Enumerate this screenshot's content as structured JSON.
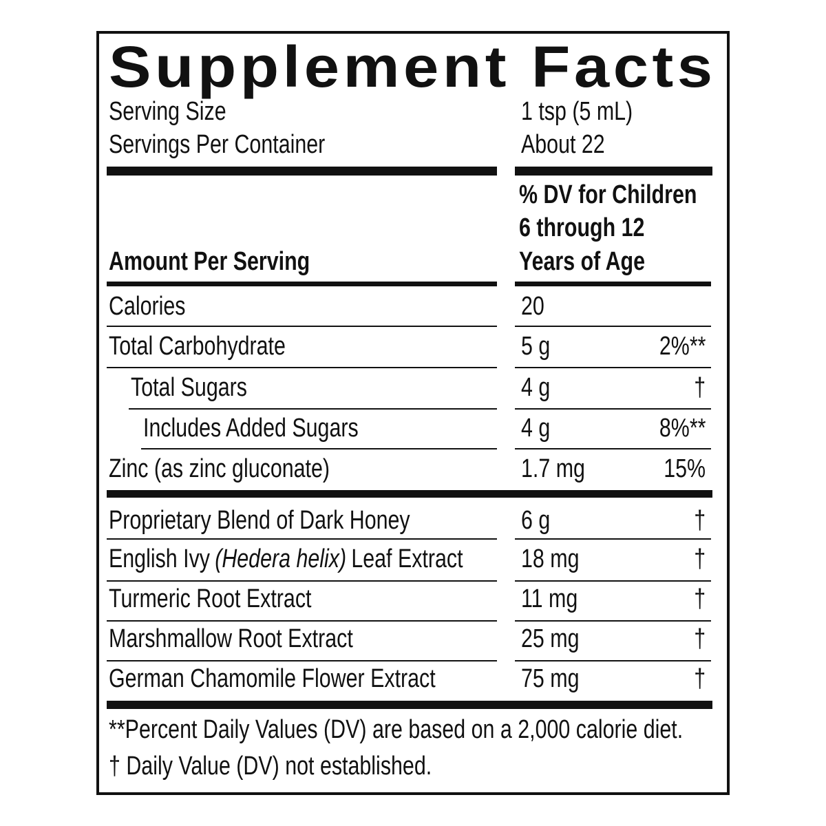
{
  "title": "Supplement Facts",
  "serving": [
    {
      "label": "Serving Size",
      "value": "1 tsp (5 mL)"
    },
    {
      "label": "Servings Per Container",
      "value": "About 22"
    }
  ],
  "column_headers": {
    "amount": "Amount Per Serving",
    "dv": [
      "% DV for Children",
      "6 through 12",
      "Years of Age"
    ]
  },
  "rows": [
    {
      "name": "Calories",
      "amount": "20"
    },
    {
      "name": "Total Carbohydrate",
      "amount": "5 g",
      "dv": "2%**"
    },
    {
      "name": "Total Sugars",
      "amount": "4 g",
      "dv": "†"
    },
    {
      "name": "Includes Added Sugars",
      "amount": "4 g",
      "dv": "8%**"
    },
    {
      "name": "Zinc (as zinc gluconate)",
      "amount": "1.7 mg",
      "dv": "15%"
    },
    {
      "name": "Proprietary Blend of Dark Honey",
      "amount": "6 g",
      "dv": "†"
    },
    {
      "name": [
        "English Ivy",
        "(Hedera helix)",
        "Leaf Extract"
      ],
      "amount": "18 mg",
      "dv": "†"
    },
    {
      "name": "Turmeric Root Extract",
      "amount": "11 mg",
      "dv": "†"
    },
    {
      "name": "Marshmallow Root Extract",
      "amount": "25 mg",
      "dv": "†"
    },
    {
      "name": "German Chamomile Flower Extract",
      "amount": "75 mg",
      "dv": "†"
    }
  ],
  "footnotes": [
    "**Percent Daily Values (DV) are based on a 2,000 calorie diet.",
    "† Daily Value (DV) not established."
  ]
}
